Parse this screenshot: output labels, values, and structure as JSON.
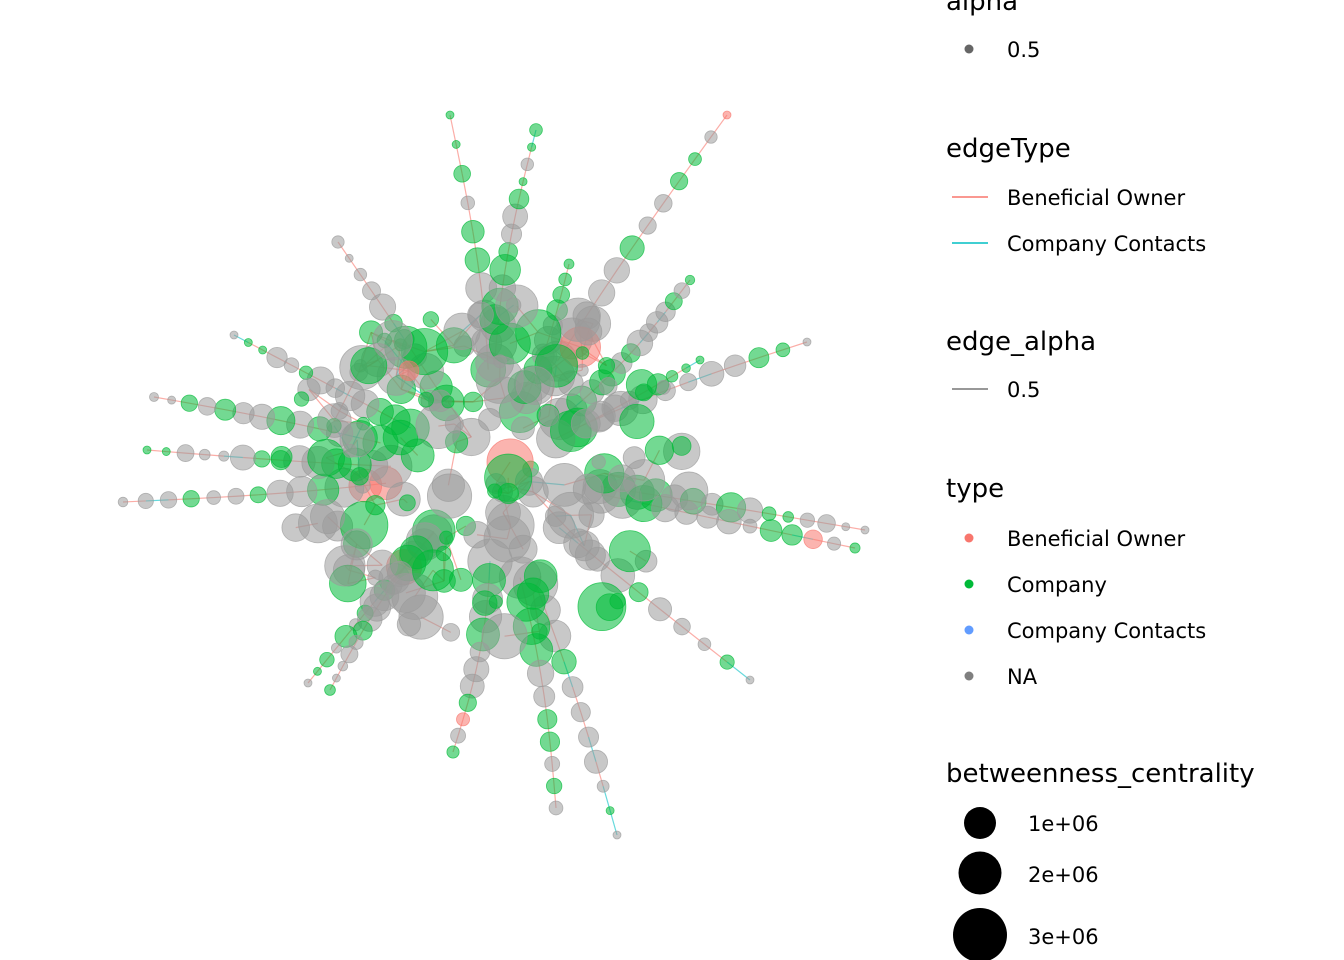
{
  "legend": {
    "alpha": {
      "title": "alpha",
      "items": [
        "0.5"
      ]
    },
    "edgeType": {
      "title": "edgeType",
      "items": [
        "Beneficial Owner",
        "Company Contacts"
      ]
    },
    "edge_alpha": {
      "title": "edge_alpha",
      "items": [
        "0.5"
      ]
    },
    "type": {
      "title": "type",
      "items": [
        "Beneficial Owner",
        "Company",
        "Company Contacts",
        "NA"
      ]
    },
    "betweenness_centrality": {
      "title": "betweenness_centrality",
      "items": [
        "1e+06",
        "2e+06",
        "3e+06"
      ]
    }
  }
}
